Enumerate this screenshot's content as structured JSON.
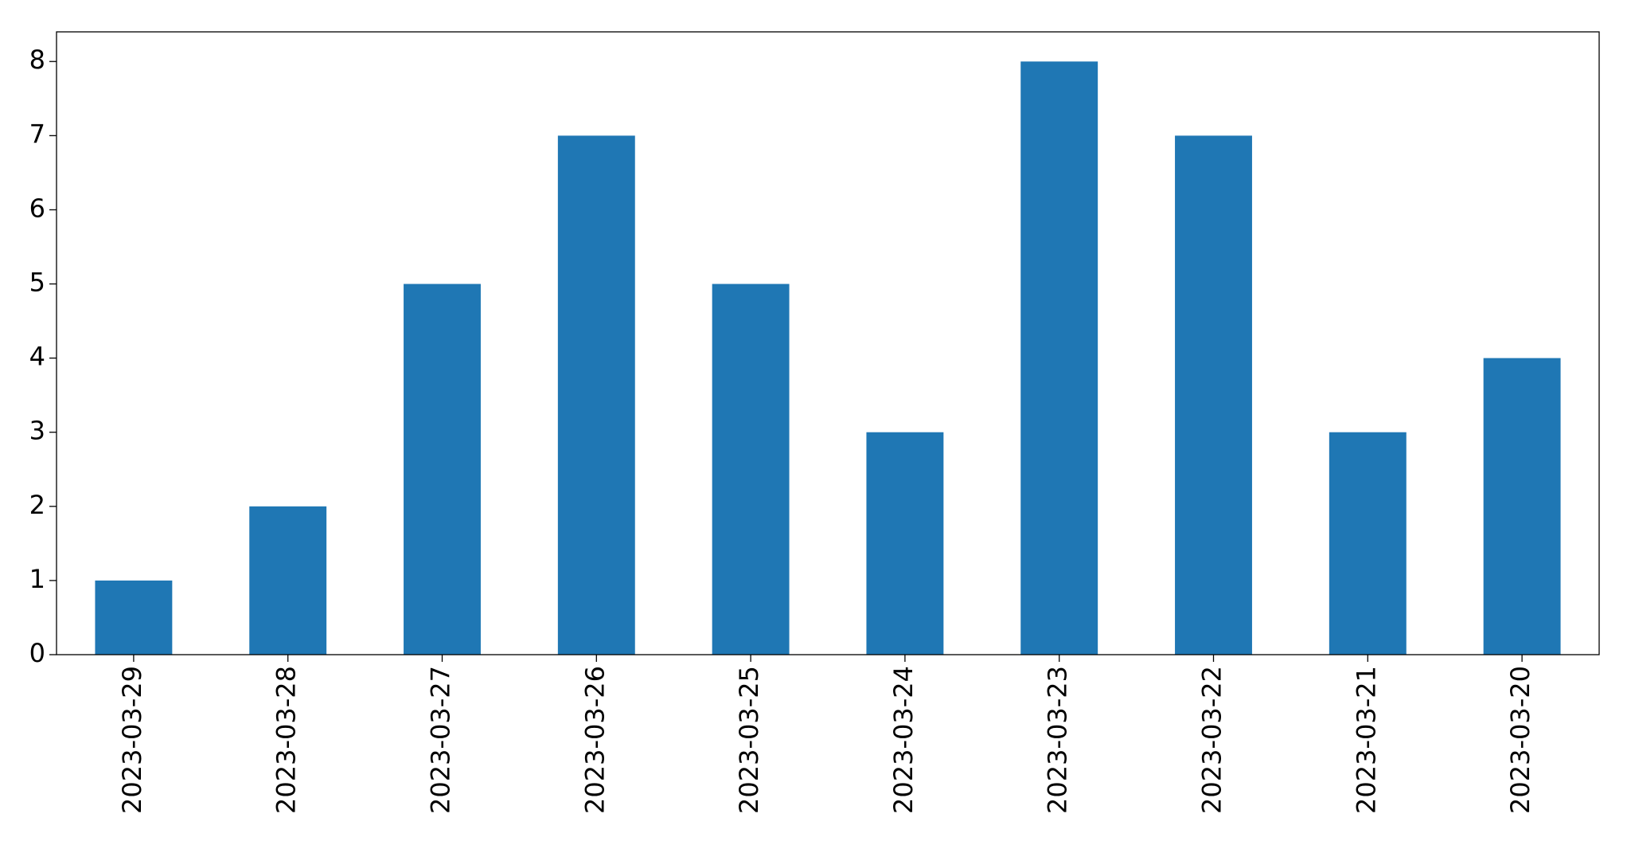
{
  "chart_data": {
    "type": "bar",
    "categories": [
      "2023-03-29",
      "2023-03-28",
      "2023-03-27",
      "2023-03-26",
      "2023-03-25",
      "2023-03-24",
      "2023-03-23",
      "2023-03-22",
      "2023-03-21",
      "2023-03-20"
    ],
    "values": [
      1,
      2,
      5,
      7,
      5,
      3,
      8,
      7,
      3,
      4
    ],
    "color": "#1f77b4",
    "ylim": [
      0,
      8.4
    ],
    "yticks": [
      0,
      1,
      2,
      3,
      4,
      5,
      6,
      7,
      8
    ],
    "grid": false
  }
}
